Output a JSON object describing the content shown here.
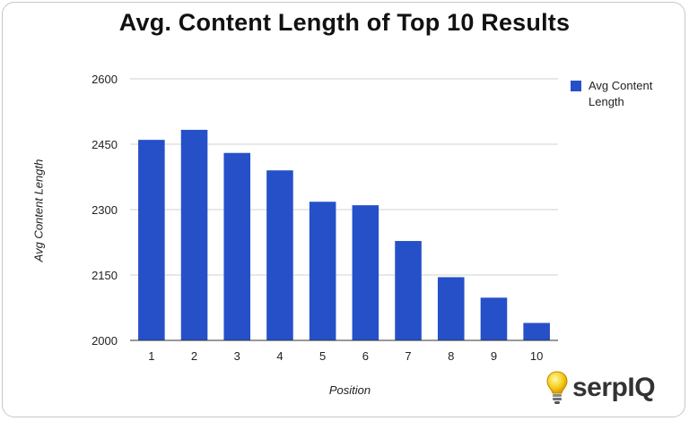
{
  "chart_data": {
    "type": "bar",
    "title": "Avg. Content Length of Top 10 Results",
    "xlabel": "Position",
    "ylabel": "Avg Content Length",
    "categories": [
      "1",
      "2",
      "3",
      "4",
      "5",
      "6",
      "7",
      "8",
      "9",
      "10"
    ],
    "series": [
      {
        "name": "Avg Content Length",
        "values": [
          2460,
          2483,
          2430,
          2390,
          2318,
          2310,
          2228,
          2145,
          2098,
          2040
        ]
      }
    ],
    "ylim": [
      2000,
      2600
    ],
    "yticks": [
      2000,
      2150,
      2300,
      2450,
      2600
    ],
    "grid": true,
    "legend_position": "right",
    "colors": {
      "bar": "#2550c8",
      "grid": "#d0d0d0",
      "axis": "#333333"
    }
  },
  "logo": {
    "text": "serpIQ",
    "icon": "lightbulb-icon"
  }
}
